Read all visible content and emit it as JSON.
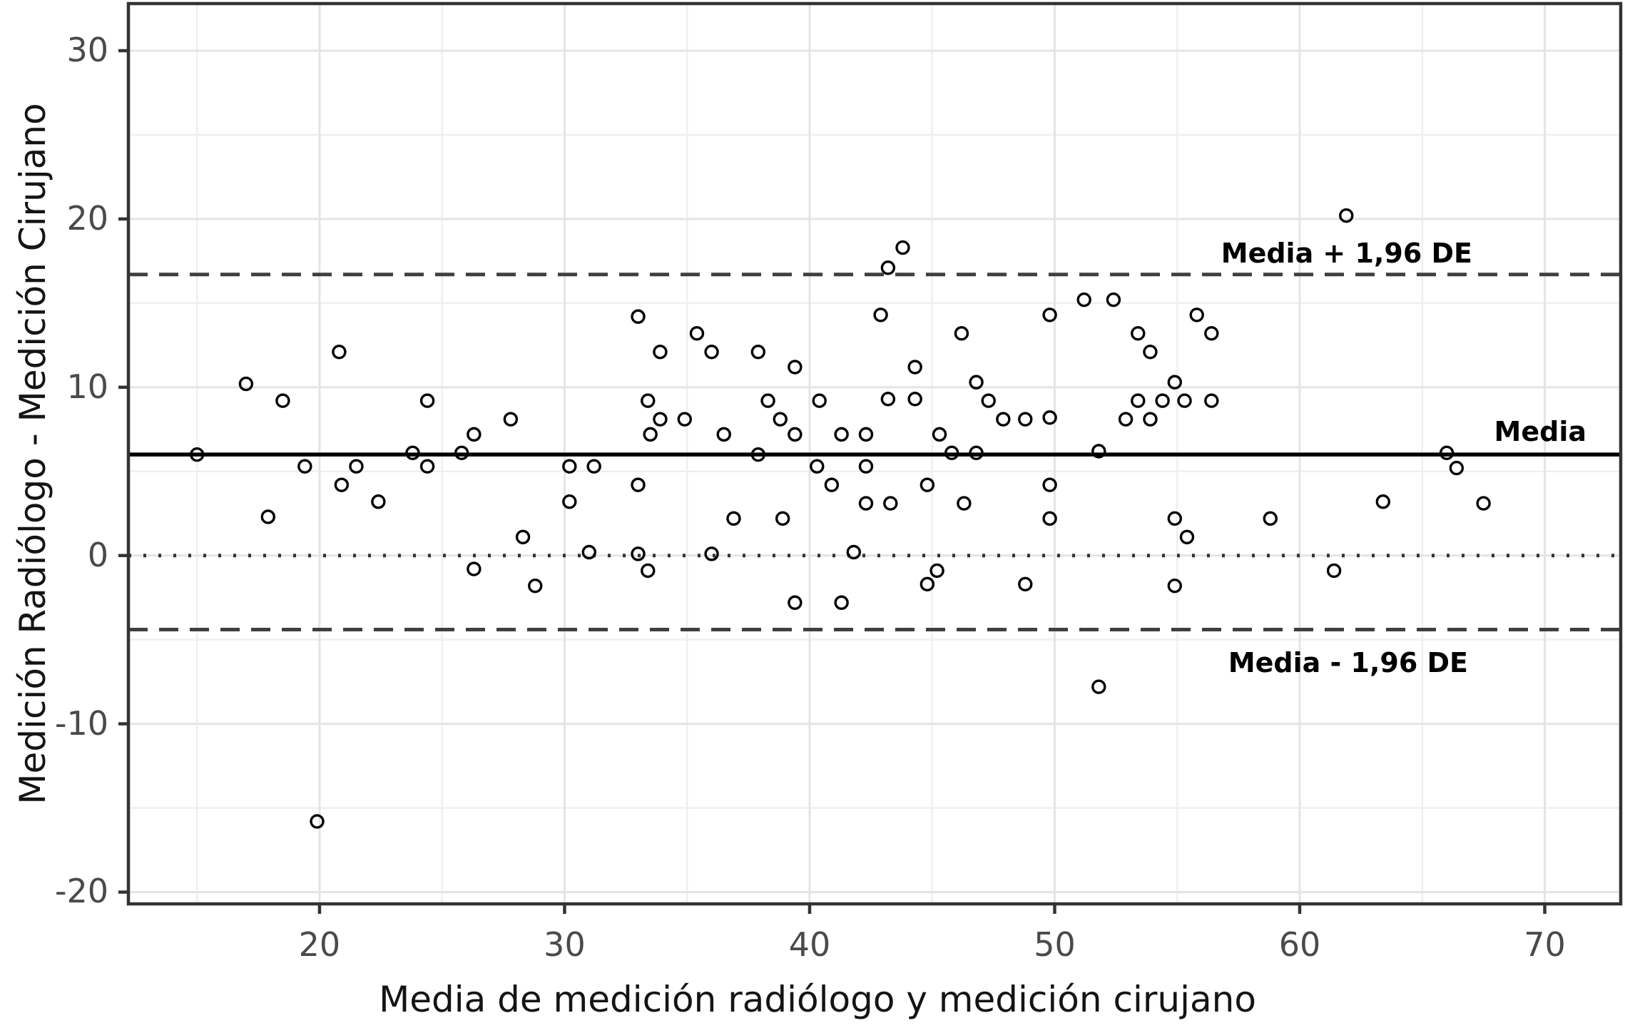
{
  "chart_data": {
    "type": "scatter",
    "title": "",
    "xlabel": "Media de medición radiólogo y medición cirujano",
    "ylabel": "Medición Radiólogo - Medición Cirujano",
    "xlim": [
      12.2,
      73.1
    ],
    "ylim": [
      -20.7,
      32.8
    ],
    "x_ticks": [
      20,
      30,
      40,
      50,
      60,
      70
    ],
    "y_ticks": [
      -20,
      -10,
      0,
      10,
      20,
      30
    ],
    "x_minor_ticks": [
      15,
      25,
      35,
      45,
      55,
      65
    ],
    "y_minor_ticks": [
      -15,
      -5,
      5,
      15,
      25
    ],
    "grid": "major+minor",
    "legend": "none",
    "marker": "open-circle",
    "reference_lines": {
      "upper_loa": {
        "value": 16.7,
        "label": "Media + 1,96 DE",
        "style": "dashed"
      },
      "mean": {
        "value": 6.0,
        "label": "Media",
        "style": "solid"
      },
      "lower_loa": {
        "value": -4.4,
        "label": "Media - 1,96 DE",
        "style": "dashed"
      },
      "zero": {
        "value": 0.0,
        "label": "",
        "style": "dotted"
      }
    },
    "points": [
      [
        15.0,
        6.0
      ],
      [
        17.0,
        10.2
      ],
      [
        18.5,
        9.2
      ],
      [
        17.9,
        2.3
      ],
      [
        19.4,
        5.3
      ],
      [
        19.9,
        -15.8
      ],
      [
        20.8,
        12.1
      ],
      [
        20.9,
        4.2
      ],
      [
        21.5,
        5.3
      ],
      [
        22.4,
        3.2
      ],
      [
        23.8,
        6.1
      ],
      [
        24.4,
        9.2
      ],
      [
        24.4,
        5.3
      ],
      [
        25.8,
        6.1
      ],
      [
        26.3,
        7.2
      ],
      [
        26.3,
        -0.8
      ],
      [
        27.8,
        8.1
      ],
      [
        28.3,
        1.1
      ],
      [
        28.8,
        -1.8
      ],
      [
        30.2,
        5.3
      ],
      [
        31.2,
        5.3
      ],
      [
        30.2,
        3.2
      ],
      [
        31.0,
        0.2
      ],
      [
        33.0,
        14.2
      ],
      [
        33.4,
        9.2
      ],
      [
        33.9,
        12.1
      ],
      [
        33.0,
        4.2
      ],
      [
        33.4,
        -0.9
      ],
      [
        33.0,
        0.1
      ],
      [
        34.9,
        8.1
      ],
      [
        33.9,
        8.1
      ],
      [
        33.5,
        7.2
      ],
      [
        35.4,
        13.2
      ],
      [
        36.0,
        12.1
      ],
      [
        36.0,
        0.1
      ],
      [
        36.5,
        7.2
      ],
      [
        36.9,
        2.2
      ],
      [
        37.9,
        12.1
      ],
      [
        37.9,
        6.0
      ],
      [
        38.3,
        9.2
      ],
      [
        38.8,
        8.1
      ],
      [
        38.9,
        2.2
      ],
      [
        39.4,
        11.2
      ],
      [
        39.4,
        7.2
      ],
      [
        39.4,
        -2.8
      ],
      [
        40.4,
        9.2
      ],
      [
        40.3,
        5.3
      ],
      [
        40.9,
        4.2
      ],
      [
        41.3,
        7.2
      ],
      [
        41.3,
        -2.8
      ],
      [
        41.8,
        0.2
      ],
      [
        42.3,
        7.2
      ],
      [
        42.3,
        5.3
      ],
      [
        42.3,
        3.1
      ],
      [
        43.2,
        17.1
      ],
      [
        43.8,
        18.3
      ],
      [
        42.9,
        14.3
      ],
      [
        43.2,
        9.3
      ],
      [
        43.3,
        3.1
      ],
      [
        44.3,
        11.2
      ],
      [
        44.3,
        9.3
      ],
      [
        44.8,
        4.2
      ],
      [
        44.8,
        -1.7
      ],
      [
        45.2,
        -0.9
      ],
      [
        45.3,
        7.2
      ],
      [
        45.8,
        6.1
      ],
      [
        46.2,
        13.2
      ],
      [
        46.8,
        10.3
      ],
      [
        46.8,
        6.1
      ],
      [
        46.3,
        3.1
      ],
      [
        47.3,
        9.2
      ],
      [
        47.9,
        8.1
      ],
      [
        48.8,
        8.1
      ],
      [
        48.8,
        -1.7
      ],
      [
        49.8,
        14.3
      ],
      [
        49.8,
        8.2
      ],
      [
        49.8,
        4.2
      ],
      [
        49.8,
        2.2
      ],
      [
        51.2,
        15.2
      ],
      [
        52.4,
        15.2
      ],
      [
        51.8,
        6.2
      ],
      [
        51.8,
        -7.8
      ],
      [
        53.4,
        13.2
      ],
      [
        53.4,
        9.2
      ],
      [
        52.9,
        8.1
      ],
      [
        53.9,
        12.1
      ],
      [
        53.9,
        8.1
      ],
      [
        54.4,
        9.2
      ],
      [
        54.9,
        10.3
      ],
      [
        55.3,
        9.2
      ],
      [
        55.8,
        14.3
      ],
      [
        56.4,
        13.2
      ],
      [
        56.4,
        9.2
      ],
      [
        54.9,
        2.2
      ],
      [
        55.4,
        1.1
      ],
      [
        54.9,
        -1.8
      ],
      [
        58.8,
        2.2
      ],
      [
        61.4,
        -0.9
      ],
      [
        61.9,
        20.2
      ],
      [
        63.4,
        3.2
      ],
      [
        66.0,
        6.1
      ],
      [
        66.4,
        5.2
      ],
      [
        67.5,
        3.1
      ]
    ]
  },
  "colors": {
    "background": "#ffffff",
    "panel_background": "#ffffff",
    "grid_major": "#e4e4e4",
    "grid_minor": "#efefef",
    "axis": "#333333",
    "tick_label": "#4a4a4a",
    "axis_title": "#141414",
    "point": "#000000",
    "ref_solid": "#000000",
    "ref_dashed": "#3f3f3f",
    "ref_dotted": "#333333",
    "line_label": "#000000"
  }
}
